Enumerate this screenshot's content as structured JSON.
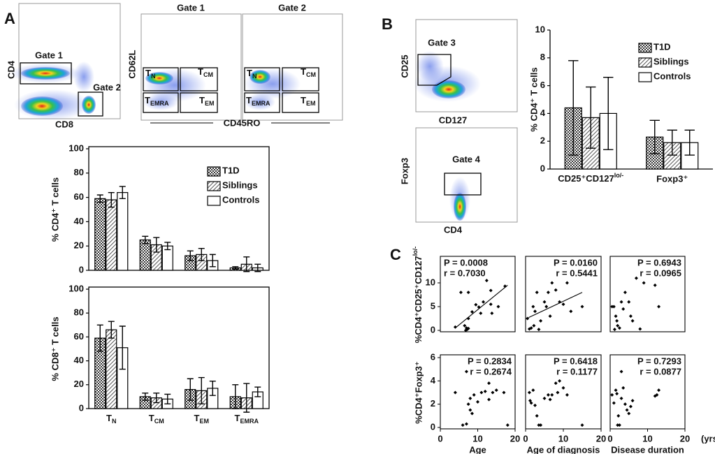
{
  "figure": {
    "panel_labels": [
      "A",
      "B",
      "C"
    ],
    "flow_a1": {
      "y_label": "CD4",
      "x_label": "CD8",
      "gates": [
        "Gate 1",
        "Gate 2"
      ]
    },
    "flow_a2": {
      "y_label": "CD62L",
      "x_label": "CD45RO",
      "titles": [
        "Gate 1",
        "Gate 2"
      ],
      "quadrants": [
        {
          "text": "T",
          "sub": "N"
        },
        {
          "text": "T",
          "sub": "CM"
        },
        {
          "text": "T",
          "sub": "EMRA"
        },
        {
          "text": "T",
          "sub": "EM"
        }
      ]
    },
    "flow_b1": {
      "y_label": "CD25",
      "x_label": "CD127",
      "gate": "Gate 3"
    },
    "flow_b2": {
      "y_label": "Foxp3",
      "x_label": "CD4",
      "gate": "Gate 4"
    },
    "x_unit": "(yrs)"
  },
  "chart_data": [
    {
      "type": "bar",
      "ylabel": "% CD4⁺ T cells",
      "categories": [
        null,
        null,
        null,
        null
      ],
      "ylim": [
        0,
        100
      ],
      "yticks": [
        0,
        20,
        40,
        60,
        80,
        100
      ],
      "legend": "upper right",
      "series": [
        {
          "name": "T1D",
          "color": "#333333",
          "pattern": "crosshatch",
          "values": [
            59,
            25,
            12,
            2
          ],
          "errors": [
            3,
            3,
            4,
            1
          ]
        },
        {
          "name": "Siblings",
          "color": "#555555",
          "pattern": "diagonal",
          "values": [
            58,
            21,
            13,
            5
          ],
          "errors": [
            6,
            6,
            5,
            6
          ]
        },
        {
          "name": "Controls",
          "color": "#ffffff",
          "pattern": "solid",
          "values": [
            64,
            20,
            8,
            2
          ],
          "errors": [
            5,
            3,
            5,
            3
          ]
        }
      ]
    },
    {
      "type": "bar",
      "ylabel": "% CD8⁺ T cells",
      "categories": [
        {
          "text": "T",
          "sub": "N"
        },
        {
          "text": "T",
          "sub": "CM"
        },
        {
          "text": "T",
          "sub": "EM"
        },
        {
          "text": "T",
          "sub": "EMRA"
        }
      ],
      "ylim": [
        0,
        100
      ],
      "yticks": [
        0,
        20,
        40,
        60,
        80,
        100
      ],
      "series": [
        {
          "color": "#333333",
          "pattern": "crosshatch",
          "values": [
            59,
            10,
            16,
            10
          ],
          "errors": [
            11,
            3,
            9,
            10
          ]
        },
        {
          "color": "#555555",
          "pattern": "diagonal",
          "values": [
            66,
            9,
            15,
            9
          ],
          "errors": [
            7,
            4,
            11,
            12
          ]
        },
        {
          "color": "#ffffff",
          "pattern": "solid",
          "values": [
            51,
            8,
            17,
            14
          ],
          "errors": [
            18,
            4,
            6,
            4
          ]
        }
      ]
    },
    {
      "type": "bar",
      "ylabel": "% CD4⁺ T cells",
      "categories": [
        {
          "text": "CD25⁺CD127",
          "sup": "lo/-"
        },
        "Foxp3⁺"
      ],
      "ylim": [
        0,
        10
      ],
      "yticks": [
        0,
        2,
        4,
        6,
        8,
        10
      ],
      "legend": "upper right",
      "series": [
        {
          "name": "T1D",
          "color": "#333333",
          "pattern": "crosshatch",
          "values": [
            4.4,
            2.3
          ],
          "errors": [
            3.4,
            1.2
          ]
        },
        {
          "name": "Siblings",
          "color": "#555555",
          "pattern": "diagonal",
          "values": [
            3.7,
            1.9
          ],
          "errors": [
            2.2,
            0.9
          ]
        },
        {
          "name": "Controls",
          "color": "#ffffff",
          "pattern": "solid",
          "values": [
            4.0,
            1.9
          ],
          "errors": [
            2.6,
            0.9
          ]
        }
      ]
    },
    {
      "type": "scatter",
      "ylabel": {
        "text": "%CD4⁺CD25⁺CD127",
        "sup": "lo/-"
      },
      "xlim": [
        0,
        20
      ],
      "ylim": [
        0,
        15
      ],
      "yticks": [
        0,
        5,
        10
      ],
      "annotations": [
        "P = 0.0008",
        "r = 0.7030"
      ],
      "annotation_corner": "upper left",
      "color": "#000000",
      "x": [
        4,
        5.5,
        7.5,
        6.5,
        7,
        7.2,
        7.5,
        7.5,
        8.5,
        9.5,
        10.3,
        10.8,
        11.5,
        12.4,
        13.5,
        13.8,
        13.5,
        15.5,
        17.3,
        6.8
      ],
      "values": [
        0.7,
        8,
        8,
        1,
        0.5,
        0.2,
        0.4,
        2.5,
        3.9,
        5.4,
        4.9,
        3.6,
        6,
        10.5,
        8.4,
        3.6,
        5.5,
        5,
        9.3,
        0
      ],
      "fit": {
        "x": [
          4,
          18
        ],
        "values": [
          0.5,
          9.5
        ]
      }
    },
    {
      "type": "scatter",
      "xlim": [
        0,
        20
      ],
      "ylim": [
        0,
        15
      ],
      "annotations": [
        "P = 0.0160",
        "r = 0.5441"
      ],
      "annotation_corner": "upper right",
      "color": "#000000",
      "x": [
        0.5,
        1,
        1.5,
        2,
        2.5,
        3,
        3.5,
        4,
        5,
        5.5,
        6,
        6.5,
        7,
        8,
        9,
        10,
        11,
        12,
        15,
        2.2
      ],
      "values": [
        2.5,
        0.3,
        0.5,
        5,
        4,
        8,
        0.2,
        2,
        6,
        5,
        8,
        3,
        10,
        8.5,
        6,
        5.5,
        10,
        4,
        5,
        1
      ],
      "fit": {
        "x": [
          0.8,
          15
        ],
        "values": [
          2.7,
          8
        ]
      }
    },
    {
      "type": "scatter",
      "xlim": [
        0,
        20
      ],
      "ylim": [
        0,
        15
      ],
      "annotations": [
        "P = 0.6943",
        "r = 0.0965"
      ],
      "annotation_corner": "upper right",
      "color": "#000000",
      "x": [
        0.5,
        1,
        1.5,
        1.8,
        2,
        2.5,
        3,
        3.5,
        4,
        5,
        5.5,
        6,
        7,
        8,
        9,
        12,
        13,
        1.2
      ],
      "values": [
        5,
        5,
        3,
        2,
        1,
        0.5,
        6,
        4.5,
        8,
        6,
        3,
        2,
        11,
        0.3,
        10,
        9.5,
        5,
        0.2
      ]
    },
    {
      "type": "scatter",
      "ylabel": "%CD4⁺Foxp3⁺",
      "xlabel": "Age",
      "xlim": [
        0,
        20
      ],
      "ylim": [
        0,
        6
      ],
      "xticks": [
        0,
        10,
        20
      ],
      "yticks": [
        0,
        2,
        4,
        6
      ],
      "annotations": [
        "P = 0.2834",
        "r = 0.2674"
      ],
      "annotation_corner": "upper right",
      "color": "#000000",
      "x": [
        4,
        6,
        7,
        7,
        7.5,
        8,
        8,
        8.5,
        9,
        10,
        11,
        12,
        13,
        13,
        14,
        15,
        17,
        18
      ],
      "values": [
        3,
        0.2,
        0.3,
        4.8,
        2,
        1.5,
        2.5,
        1.2,
        2.8,
        2.2,
        3,
        3.1,
        3.8,
        2.4,
        3,
        3.2,
        3,
        0.2
      ]
    },
    {
      "type": "scatter",
      "xlabel": "Age of diagnosis",
      "xlim": [
        0,
        20
      ],
      "ylim": [
        0,
        6
      ],
      "xticks": [
        0,
        10,
        20
      ],
      "annotations": [
        "P = 0.6418",
        "r = 0.1177"
      ],
      "annotation_corner": "upper right",
      "color": "#000000",
      "x": [
        1,
        1.5,
        2,
        2.5,
        3,
        3.5,
        4,
        5,
        6,
        7,
        8,
        9,
        10,
        11,
        15,
        1.2,
        6.5,
        8.5
      ],
      "values": [
        3,
        2.1,
        3.2,
        1.9,
        1,
        0.2,
        0.2,
        2.5,
        2.8,
        2.8,
        3.8,
        4,
        3.4,
        2.8,
        0.2,
        2.3,
        2.4,
        3
      ]
    },
    {
      "type": "scatter",
      "xlabel": "Disease duration",
      "xlim": [
        0,
        20
      ],
      "ylim": [
        0,
        6
      ],
      "xticks": [
        0,
        10,
        20
      ],
      "annotations": [
        "P = 0.7293",
        "r = 0.0877"
      ],
      "annotation_corner": "upper right",
      "color": "#000000",
      "x": [
        0.5,
        1,
        1.5,
        2,
        2.5,
        3,
        3,
        3.5,
        4,
        4.5,
        5,
        5.5,
        6,
        12,
        12.5,
        13,
        1.8,
        2.2
      ],
      "values": [
        2.8,
        2.1,
        3.2,
        0.2,
        0.2,
        2.5,
        4.8,
        3.4,
        2,
        1.5,
        1.2,
        1.8,
        2.3,
        2.7,
        2.8,
        3.2,
        2.9,
        1
      ]
    }
  ]
}
